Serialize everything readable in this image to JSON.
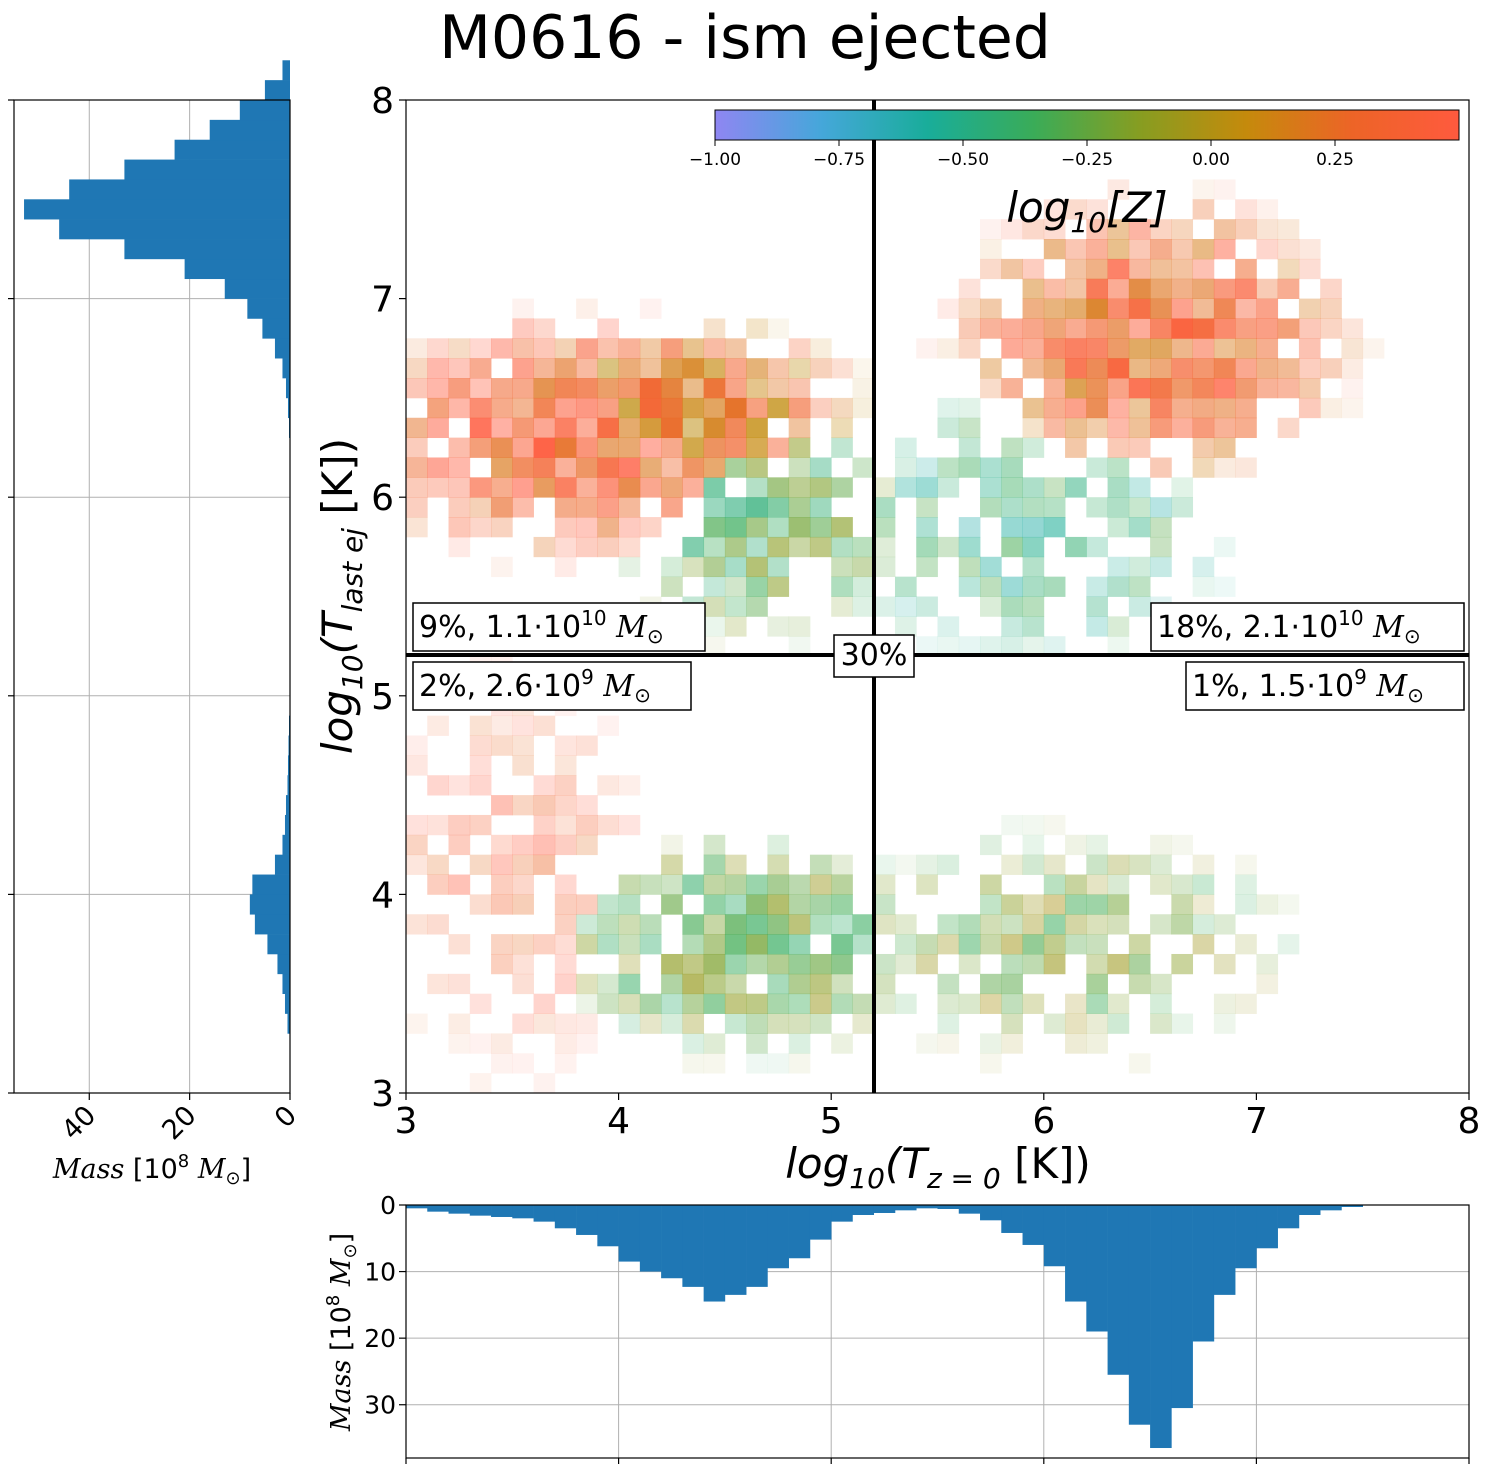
{
  "title": "M0616 - ism ejected",
  "chart_data": [
    {
      "type": "heatmap",
      "name": "main-2d-histogram",
      "xlabel": "log10(T_z=0 [K])",
      "ylabel": "log10(T_last ej [K])",
      "xlim": [
        3,
        8
      ],
      "ylim": [
        3,
        8
      ],
      "xticks": [
        "3",
        "4",
        "5",
        "6",
        "7",
        "8"
      ],
      "yticks": [
        "3",
        "4",
        "5",
        "6",
        "7",
        "8"
      ],
      "grid": false,
      "bin_width": 0.1,
      "threshold_lines": {
        "x": 5.2,
        "y": 5.2
      },
      "colorbar": {
        "label": "log10[Z]",
        "range": [
          -1.0,
          0.5
        ],
        "ticks": [
          "−1.00",
          "−0.75",
          "−0.50",
          "−0.25",
          "0.00",
          "0.25"
        ],
        "placement": "top-right"
      },
      "annotations": {
        "top_left": "9%, 1.1·10^10 M⊙",
        "top_right": "18%, 2.1·10^10 M⊙",
        "bottom_left": "2%, 2.6·10^9 M⊙",
        "bottom_right": "1%, 1.5·10^9 M⊙",
        "center": "30%"
      },
      "clusters": [
        {
          "x": [
            3.0,
            4.6
          ],
          "y": [
            5.9,
            6.7
          ],
          "z": 0.35,
          "density": 0.9
        },
        {
          "x": [
            3.6,
            4.9
          ],
          "y": [
            6.2,
            6.7
          ],
          "z": 0.2,
          "density": 0.95
        },
        {
          "x": [
            4.2,
            5.2
          ],
          "y": [
            5.5,
            6.3
          ],
          "z": -0.3,
          "density": 0.7
        },
        {
          "x": [
            5.2,
            6.6
          ],
          "y": [
            5.4,
            6.3
          ],
          "z": -0.45,
          "density": 0.55
        },
        {
          "x": [
            5.8,
            7.2
          ],
          "y": [
            6.3,
            7.3
          ],
          "z": 0.3,
          "density": 0.9
        },
        {
          "x": [
            3.0,
            4.0
          ],
          "y": [
            3.4,
            4.8
          ],
          "z": 0.4,
          "density": 0.4
        },
        {
          "x": [
            3.9,
            5.3
          ],
          "y": [
            3.4,
            4.1
          ],
          "z": -0.25,
          "density": 0.75
        },
        {
          "x": [
            5.3,
            6.9
          ],
          "y": [
            3.4,
            4.1
          ],
          "z": -0.2,
          "density": 0.55
        }
      ]
    },
    {
      "type": "bar",
      "name": "left-marginal-histogram",
      "orientation": "horizontal",
      "xlabel": "Mass [10^8 M⊙]",
      "xticks": [
        "40",
        "20",
        "0"
      ],
      "xlim": [
        55,
        0
      ],
      "ylim": [
        3,
        8
      ],
      "grid": true,
      "bin_start": 3.0,
      "bin_width": 0.1,
      "values": [
        0,
        0,
        0,
        0.5,
        1.0,
        1.5,
        2.5,
        4.5,
        7,
        8,
        7.5,
        3,
        1.5,
        1,
        0.8,
        0.5,
        0.4,
        0.3,
        0.2,
        0.1,
        0.1,
        0.1,
        0.1,
        0,
        0,
        0,
        0,
        0,
        0,
        0,
        0,
        0,
        0.1,
        0.2,
        0.4,
        0.8,
        1.5,
        3,
        5.5,
        8.5,
        13,
        21,
        33,
        46,
        53,
        44,
        33,
        23,
        16,
        10,
        5,
        1.5,
        0,
        0,
        0,
        0,
        0,
        0,
        0,
        0
      ]
    },
    {
      "type": "bar",
      "name": "bottom-marginal-histogram",
      "orientation": "vertical-inverted",
      "ylabel": "Mass [10^8 M⊙]",
      "yticks": [
        "0",
        "10",
        "20",
        "30"
      ],
      "ylim": [
        0,
        38
      ],
      "xlim": [
        3,
        8
      ],
      "grid": true,
      "bin_start": 3.0,
      "bin_width": 0.1,
      "values": [
        0.5,
        1.0,
        1.3,
        1.6,
        1.8,
        2.0,
        2.5,
        3.5,
        4.5,
        6.2,
        8.5,
        10.0,
        11.0,
        12.3,
        14.5,
        13.5,
        12.3,
        9.5,
        8.0,
        5.2,
        2.5,
        1.5,
        1.2,
        0.8,
        0.5,
        0.6,
        1.3,
        2.3,
        4.2,
        6.0,
        9.2,
        14.5,
        19.0,
        25.5,
        33.0,
        36.5,
        30.5,
        20.5,
        13.5,
        9.5,
        6.5,
        3.5,
        1.5,
        0.8,
        0.3,
        0,
        0,
        0,
        0,
        0
      ]
    }
  ],
  "colors": {
    "hist_bar": "#1f77b4",
    "grid": "#b0b0b0",
    "colormap": [
      "#8f86f2",
      "#45a7da",
      "#19ad9a",
      "#3aac58",
      "#879d21",
      "#c58a0c",
      "#ed6427",
      "#ff5a3e"
    ]
  }
}
